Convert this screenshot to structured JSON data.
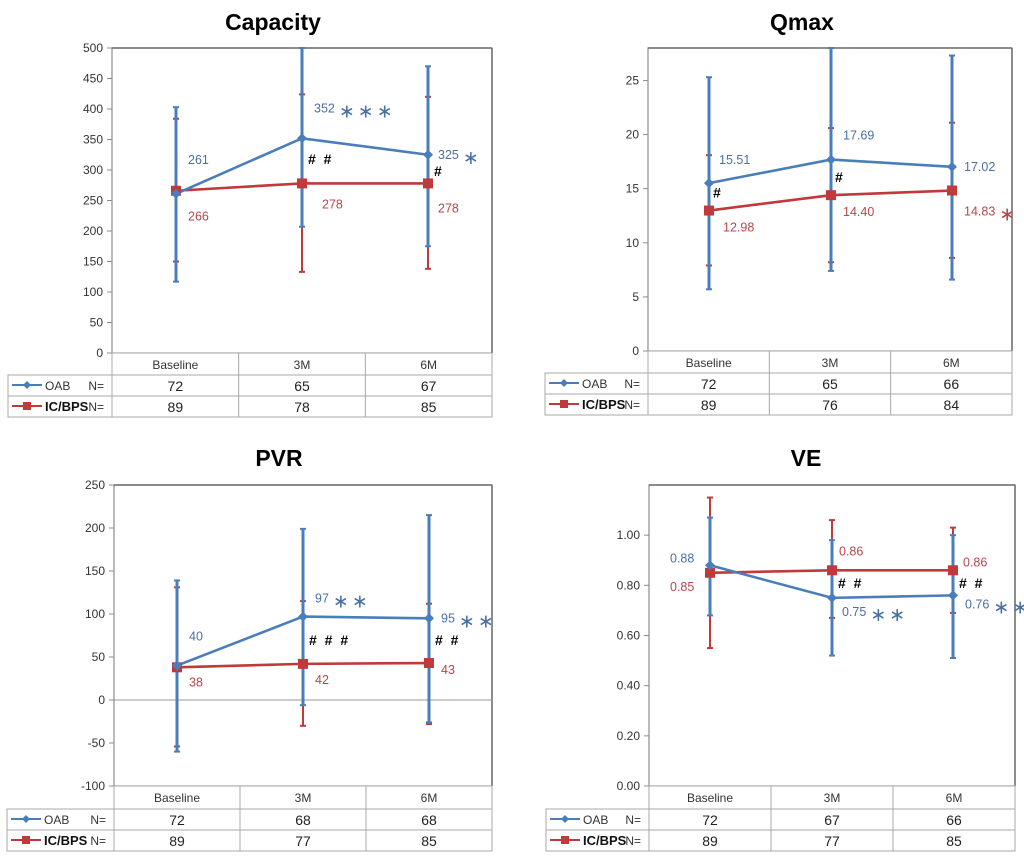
{
  "colors": {
    "oab": "#4a7ebb",
    "icbps": "#c0393b",
    "oab_label": "#4a6fa5",
    "icbps_label": "#b5474b"
  },
  "legend": {
    "oab": "OAB",
    "icbps": "IC/BPS",
    "n_label": "N="
  },
  "chart_data": [
    {
      "type": "line",
      "title": "Capacity",
      "categories": [
        "Baseline",
        "3M",
        "6M"
      ],
      "ylim": [
        0,
        500
      ],
      "yticks": [
        0,
        50,
        100,
        150,
        200,
        250,
        300,
        350,
        400,
        450,
        500
      ],
      "tick_decimals": 0,
      "zero_line": false,
      "series": [
        {
          "name": "OAB",
          "values": [
            261,
            352,
            325
          ],
          "err_low": [
            117,
            207,
            175
          ],
          "err_high": [
            403,
            500,
            470
          ],
          "labels": [
            "261",
            "352",
            "325"
          ],
          "stars": [
            "",
            "***",
            "*"
          ],
          "n": [
            72,
            65,
            67
          ]
        },
        {
          "name": "IC/BPS",
          "values": [
            266,
            278,
            278
          ],
          "err_low": [
            150,
            133,
            138
          ],
          "err_high": [
            384,
            424,
            420
          ],
          "labels": [
            "266",
            "278",
            "278"
          ],
          "stars": [
            "",
            "",
            ""
          ],
          "n": [
            89,
            78,
            85
          ]
        }
      ],
      "hash_marks": [
        "",
        "##",
        "#"
      ]
    },
    {
      "type": "line",
      "title": "Qmax",
      "categories": [
        "Baseline",
        "3M",
        "6M"
      ],
      "ylim": [
        0,
        28
      ],
      "yticks": [
        0,
        5,
        10,
        15,
        20,
        25
      ],
      "tick_decimals": 0,
      "zero_line": false,
      "series": [
        {
          "name": "OAB",
          "values": [
            15.51,
            17.69,
            17.02
          ],
          "err_low": [
            5.7,
            7.4,
            6.6
          ],
          "err_high": [
            25.3,
            28.0,
            27.3
          ],
          "labels": [
            "15.51",
            "17.69",
            "17.02"
          ],
          "stars": [
            "",
            "",
            ""
          ],
          "n": [
            72,
            65,
            66
          ]
        },
        {
          "name": "IC/BPS",
          "values": [
            12.98,
            14.4,
            14.83
          ],
          "err_low": [
            7.9,
            8.2,
            8.6
          ],
          "err_high": [
            18.1,
            20.6,
            21.1
          ],
          "labels": [
            "12.98",
            "14.40",
            "14.83"
          ],
          "stars": [
            "",
            "",
            "*"
          ],
          "n": [
            89,
            76,
            84
          ]
        }
      ],
      "hash_marks": [
        "#",
        "#",
        ""
      ]
    },
    {
      "type": "line",
      "title": "PVR",
      "categories": [
        "Baseline",
        "3M",
        "6M"
      ],
      "ylim": [
        -100,
        250
      ],
      "yticks": [
        -100,
        -50,
        0,
        50,
        100,
        150,
        200,
        250
      ],
      "tick_decimals": 0,
      "zero_line": true,
      "series": [
        {
          "name": "OAB",
          "values": [
            40,
            97,
            95
          ],
          "err_low": [
            -60,
            -6,
            -26
          ],
          "err_high": [
            139,
            199,
            215
          ],
          "labels": [
            "40",
            "97",
            "95"
          ],
          "stars": [
            "",
            "**",
            "**"
          ],
          "n": [
            72,
            68,
            68
          ]
        },
        {
          "name": "IC/BPS",
          "values": [
            38,
            42,
            43
          ],
          "err_low": [
            -54,
            -30,
            -28
          ],
          "err_high": [
            131,
            115,
            112
          ],
          "labels": [
            "38",
            "42",
            "43"
          ],
          "stars": [
            "",
            "",
            ""
          ],
          "n": [
            89,
            77,
            85
          ]
        }
      ],
      "hash_marks": [
        "",
        "###",
        "##"
      ]
    },
    {
      "type": "line",
      "title": "VE",
      "categories": [
        "Baseline",
        "3M",
        "6M"
      ],
      "ylim": [
        0,
        1.2
      ],
      "yticks": [
        0,
        0.2,
        0.4,
        0.6,
        0.8,
        1.0
      ],
      "tick_decimals": 2,
      "zero_line": false,
      "series": [
        {
          "name": "OAB",
          "values": [
            0.88,
            0.75,
            0.76
          ],
          "err_low": [
            0.68,
            0.52,
            0.51
          ],
          "err_high": [
            1.07,
            0.98,
            1.0
          ],
          "labels": [
            "0.88",
            "0.75",
            "0.76"
          ],
          "stars": [
            "",
            "**",
            "**"
          ],
          "n": [
            72,
            67,
            66
          ]
        },
        {
          "name": "IC/BPS",
          "values": [
            0.85,
            0.86,
            0.86
          ],
          "err_low": [
            0.55,
            0.67,
            0.69
          ],
          "err_high": [
            1.15,
            1.06,
            1.03
          ],
          "labels": [
            "0.85",
            "0.86",
            "0.86"
          ],
          "stars": [
            "",
            "",
            ""
          ],
          "n": [
            89,
            77,
            85
          ]
        }
      ],
      "hash_marks": [
        "",
        "##",
        "##"
      ]
    }
  ]
}
